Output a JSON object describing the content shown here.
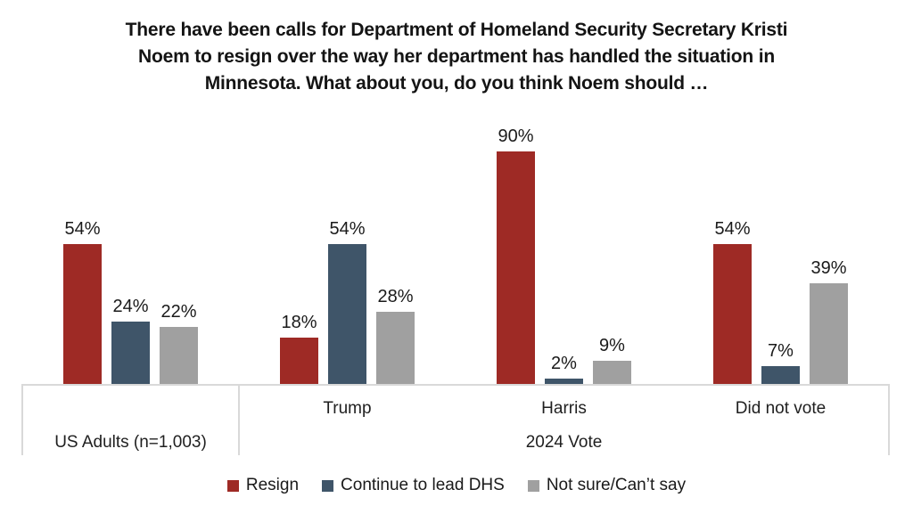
{
  "chart_data": {
    "type": "bar",
    "title": "There have been calls for Department of Homeland Security Secretary Kristi\nNoem to resign over the way her department has handled the situation in\nMinnesota. What about you, do you think Noem should …",
    "categories": [
      "US Adults (n=1,003)",
      "Trump",
      "Harris",
      "Did not vote"
    ],
    "x_axis": {
      "tick_row_labels": [
        "",
        "Trump",
        "Harris",
        "Did not vote"
      ],
      "group_row_labels": [
        {
          "text": "US Adults (n=1,003)",
          "start": 0,
          "end": 0
        },
        {
          "text": "2024 Vote",
          "start": 1,
          "end": 3
        }
      ]
    },
    "series": [
      {
        "name": "Resign",
        "color": "#9E2A25",
        "values": [
          54,
          18,
          90,
          54
        ]
      },
      {
        "name": "Continue to lead DHS",
        "color": "#3F5569",
        "values": [
          24,
          54,
          2,
          7
        ]
      },
      {
        "name": "Not sure/Can’t say",
        "color": "#A0A0A0",
        "values": [
          22,
          28,
          9,
          39
        ]
      }
    ],
    "data_labels": [
      "54%",
      "18%",
      "90%",
      "54%",
      "24%",
      "54%",
      "2%",
      "7%",
      "22%",
      "28%",
      "9%",
      "39%"
    ],
    "data_label_suffix": "%",
    "ylim": [
      0,
      100
    ],
    "grid": false,
    "legend_position": "bottom",
    "colors": {
      "axis_line": "#D9D9D9",
      "text": "#1A1A1A",
      "background": "#FFFFFF"
    }
  }
}
